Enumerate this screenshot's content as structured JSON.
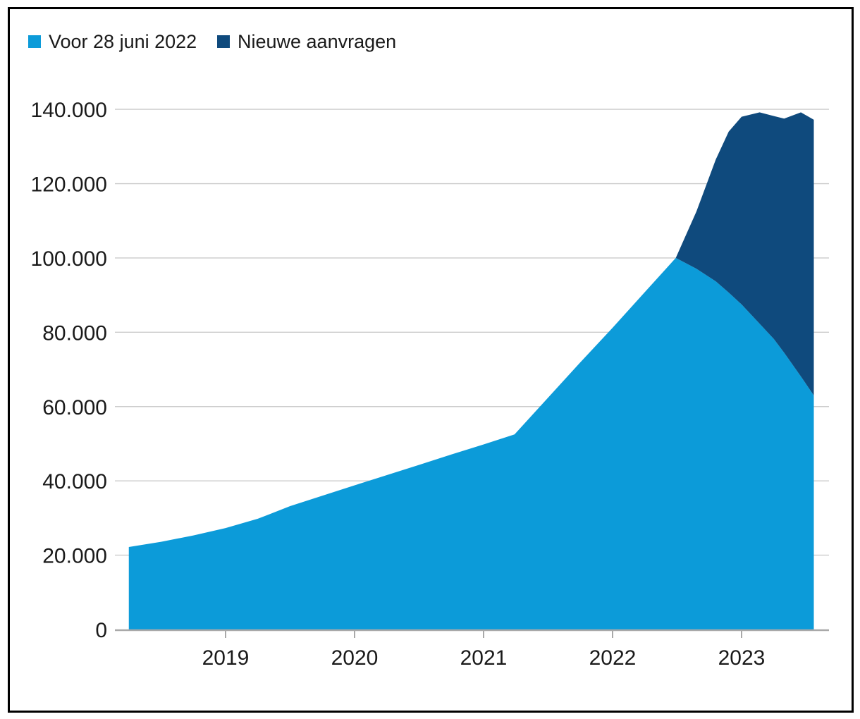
{
  "chart_data": {
    "type": "area",
    "stacked": true,
    "title": "",
    "legend_position": "top-left",
    "grid": true,
    "colors": {
      "gridline": "#cbcbcb",
      "axis_line": "#a9a9a9",
      "tick": "#a9a9a9",
      "text": "#1a1a1a",
      "frame": "#000000",
      "background": "#ffffff"
    },
    "legend": [
      {
        "label": "Voor 28 juni 2022",
        "color": "#0C9BD9"
      },
      {
        "label": "Nieuwe aanvragen",
        "color": "#0F4A7D"
      }
    ],
    "x_axis": {
      "tick_labels": [
        "2019",
        "2020",
        "2021",
        "2022",
        "2023"
      ],
      "tick_values": [
        2019,
        2020,
        2021,
        2022,
        2023
      ],
      "range": [
        2018.17,
        2023.68
      ]
    },
    "y_axis": {
      "tick_labels": [
        "0",
        "20.000",
        "40.000",
        "60.000",
        "80.000",
        "100.000",
        "120.000",
        "140.000"
      ],
      "tick_values": [
        0,
        20000,
        40000,
        60000,
        80000,
        100000,
        120000,
        140000
      ],
      "range": [
        0,
        140000
      ]
    },
    "x": [
      2018.25,
      2018.5,
      2018.75,
      2019.0,
      2019.25,
      2019.5,
      2019.75,
      2020.0,
      2020.11,
      2020.5,
      2020.75,
      2021.0,
      2021.24,
      2021.5,
      2021.75,
      2022.0,
      2022.25,
      2022.49,
      2022.65,
      2022.8,
      2022.9,
      2023.0,
      2023.14,
      2023.25,
      2023.33,
      2023.46,
      2023.56
    ],
    "series": [
      {
        "name": "Voor 28 juni 2022",
        "color": "#0C9BD9",
        "values": [
          22200,
          23600,
          25300,
          27300,
          29800,
          33200,
          36000,
          38800,
          40000,
          44300,
          47100,
          49800,
          52500,
          62400,
          71900,
          81200,
          90800,
          100000,
          97100,
          93700,
          90700,
          87500,
          82300,
          78200,
          74500,
          68100,
          63000
        ]
      },
      {
        "name": "Nieuwe aanvragen",
        "color": "#0F4A7D",
        "values": [
          0,
          0,
          0,
          0,
          0,
          0,
          0,
          0,
          0,
          0,
          0,
          0,
          0,
          0,
          0,
          0,
          0,
          0,
          15400,
          32800,
          43300,
          50500,
          56900,
          60000,
          63000,
          71100,
          74200
        ]
      }
    ]
  }
}
